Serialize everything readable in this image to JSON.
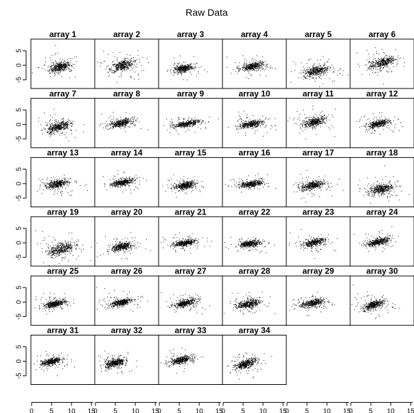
{
  "title": "Raw Data",
  "chart_data": {
    "type": "scatter",
    "layout": {
      "rows": 6,
      "cols": 6
    },
    "panel_titles": [
      "array 1",
      "array 2",
      "array 3",
      "array 4",
      "array 5",
      "array 6",
      "array 7",
      "array 8",
      "array 9",
      "array 10",
      "array 11",
      "array 12",
      "array 13",
      "array 14",
      "array 15",
      "array 16",
      "array 17",
      "array 18",
      "array 19",
      "array 20",
      "array 21",
      "array 22",
      "array 23",
      "array 24",
      "array 25",
      "array 26",
      "array 27",
      "array 28",
      "array 29",
      "array 30",
      "array 31",
      "array 32",
      "array 33",
      "array 34"
    ],
    "xlim": [
      0,
      16
    ],
    "ylim": [
      -8,
      9
    ],
    "x_ticks": [
      0,
      5,
      10,
      15
    ],
    "y_ticks": [
      -5,
      0,
      5
    ],
    "point_color": "#000000",
    "panels": [
      {
        "cx": 7.2,
        "cy": -0.5,
        "slope": 0.3,
        "spread_x": 1.3,
        "spread_y": 1.4
      },
      {
        "cx": 6.8,
        "cy": 0.0,
        "slope": 0.35,
        "spread_x": 1.4,
        "spread_y": 1.6
      },
      {
        "cx": 6.2,
        "cy": -1.0,
        "slope": 0.25,
        "spread_x": 1.1,
        "spread_y": 1.0
      },
      {
        "cx": 7.4,
        "cy": -0.3,
        "slope": 0.25,
        "spread_x": 1.3,
        "spread_y": 1.1
      },
      {
        "cx": 7.5,
        "cy": -1.8,
        "slope": 0.3,
        "spread_x": 1.6,
        "spread_y": 1.5
      },
      {
        "cx": 8.0,
        "cy": 1.0,
        "slope": 0.45,
        "spread_x": 1.6,
        "spread_y": 1.5
      },
      {
        "cx": 6.8,
        "cy": -0.8,
        "slope": 0.4,
        "spread_x": 1.4,
        "spread_y": 1.5
      },
      {
        "cx": 6.5,
        "cy": 0.6,
        "slope": 0.3,
        "spread_x": 1.4,
        "spread_y": 1.0
      },
      {
        "cx": 7.0,
        "cy": 0.3,
        "slope": 0.25,
        "spread_x": 1.6,
        "spread_y": 0.8
      },
      {
        "cx": 7.0,
        "cy": 0.2,
        "slope": 0.25,
        "spread_x": 1.5,
        "spread_y": 1.0
      },
      {
        "cx": 7.0,
        "cy": 1.0,
        "slope": 0.35,
        "spread_x": 1.4,
        "spread_y": 1.3
      },
      {
        "cx": 7.0,
        "cy": 0.3,
        "slope": 0.3,
        "spread_x": 1.4,
        "spread_y": 1.0
      },
      {
        "cx": 6.5,
        "cy": 0.0,
        "slope": 0.25,
        "spread_x": 1.4,
        "spread_y": 1.2
      },
      {
        "cx": 6.8,
        "cy": 0.5,
        "slope": 0.25,
        "spread_x": 1.3,
        "spread_y": 1.0
      },
      {
        "cx": 6.5,
        "cy": -0.5,
        "slope": 0.25,
        "spread_x": 1.2,
        "spread_y": 1.0
      },
      {
        "cx": 7.2,
        "cy": 0.0,
        "slope": 0.2,
        "spread_x": 1.4,
        "spread_y": 0.9
      },
      {
        "cx": 6.5,
        "cy": -0.5,
        "slope": 0.25,
        "spread_x": 1.4,
        "spread_y": 1.3
      },
      {
        "cx": 7.5,
        "cy": -1.8,
        "slope": 0.3,
        "spread_x": 1.5,
        "spread_y": 1.4
      },
      {
        "cx": 7.5,
        "cy": -2.0,
        "slope": 0.4,
        "spread_x": 1.6,
        "spread_y": 1.8
      },
      {
        "cx": 6.8,
        "cy": -1.2,
        "slope": 0.25,
        "spread_x": 1.3,
        "spread_y": 1.1
      },
      {
        "cx": 6.5,
        "cy": 0.0,
        "slope": 0.2,
        "spread_x": 1.3,
        "spread_y": 0.9
      },
      {
        "cx": 6.8,
        "cy": -0.2,
        "slope": 0.2,
        "spread_x": 1.3,
        "spread_y": 0.9
      },
      {
        "cx": 6.8,
        "cy": 0.2,
        "slope": 0.3,
        "spread_x": 1.4,
        "spread_y": 1.0
      },
      {
        "cx": 7.0,
        "cy": 0.4,
        "slope": 0.35,
        "spread_x": 1.4,
        "spread_y": 1.0
      },
      {
        "cx": 6.0,
        "cy": -0.5,
        "slope": 0.3,
        "spread_x": 1.3,
        "spread_y": 0.9
      },
      {
        "cx": 6.5,
        "cy": 0.0,
        "slope": 0.3,
        "spread_x": 1.3,
        "spread_y": 1.0
      },
      {
        "cx": 6.5,
        "cy": -0.3,
        "slope": 0.3,
        "spread_x": 1.4,
        "spread_y": 1.0
      },
      {
        "cx": 6.5,
        "cy": -0.5,
        "slope": 0.25,
        "spread_x": 1.4,
        "spread_y": 1.2
      },
      {
        "cx": 6.5,
        "cy": -0.3,
        "slope": 0.25,
        "spread_x": 1.4,
        "spread_y": 1.1
      },
      {
        "cx": 5.8,
        "cy": -0.8,
        "slope": 0.45,
        "spread_x": 1.3,
        "spread_y": 1.2
      },
      {
        "cx": 5.0,
        "cy": 0.0,
        "slope": 0.35,
        "spread_x": 1.2,
        "spread_y": 1.0
      },
      {
        "cx": 5.0,
        "cy": -0.5,
        "slope": 0.35,
        "spread_x": 1.2,
        "spread_y": 1.2
      },
      {
        "cx": 5.5,
        "cy": 0.5,
        "slope": 0.3,
        "spread_x": 1.3,
        "spread_y": 1.0
      },
      {
        "cx": 5.8,
        "cy": -0.8,
        "slope": 0.45,
        "spread_x": 1.3,
        "spread_y": 1.2
      }
    ]
  }
}
